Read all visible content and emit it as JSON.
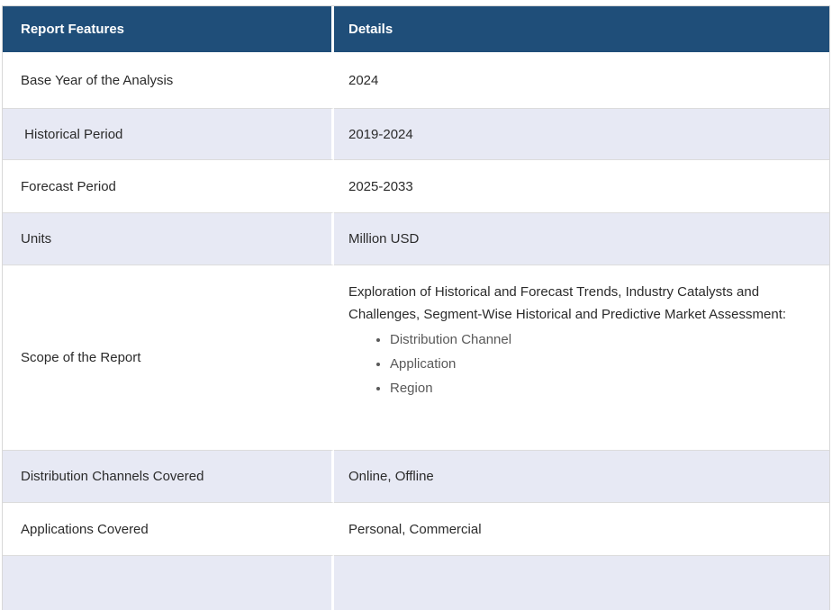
{
  "colors": {
    "header_bg": "#1F4E79",
    "header_text": "#FFFFFF",
    "row_bg": "#FFFFFF",
    "row_alt_bg": "#E7E9F4",
    "body_text": "#2B2B2B",
    "bullet_text": "#595959",
    "grid_line": "#DCDCDC"
  },
  "table": {
    "columns": {
      "feature": "Report Features",
      "detail": "Details"
    },
    "rows": [
      {
        "feature": "Base Year of the Analysis",
        "detail": "2024"
      },
      {
        "feature": " Historical Period",
        "detail": "2019-2024"
      },
      {
        "feature": "Forecast Period",
        "detail": "2025-2033"
      },
      {
        "feature": "Units",
        "detail": "Million USD"
      },
      {
        "feature": "Scope of the Report",
        "detail_intro": "Exploration of Historical and Forecast Trends, Industry Catalysts and Challenges, Segment-Wise Historical and Predictive Market Assessment:",
        "detail_bullets": [
          "Distribution Channel",
          "Application",
          "Region"
        ]
      },
      {
        "feature": "Distribution Channels Covered",
        "detail": "Online, Offline"
      },
      {
        "feature": "Applications Covered",
        "detail": "Personal, Commercial"
      },
      {
        "feature": "",
        "detail": ""
      }
    ]
  }
}
